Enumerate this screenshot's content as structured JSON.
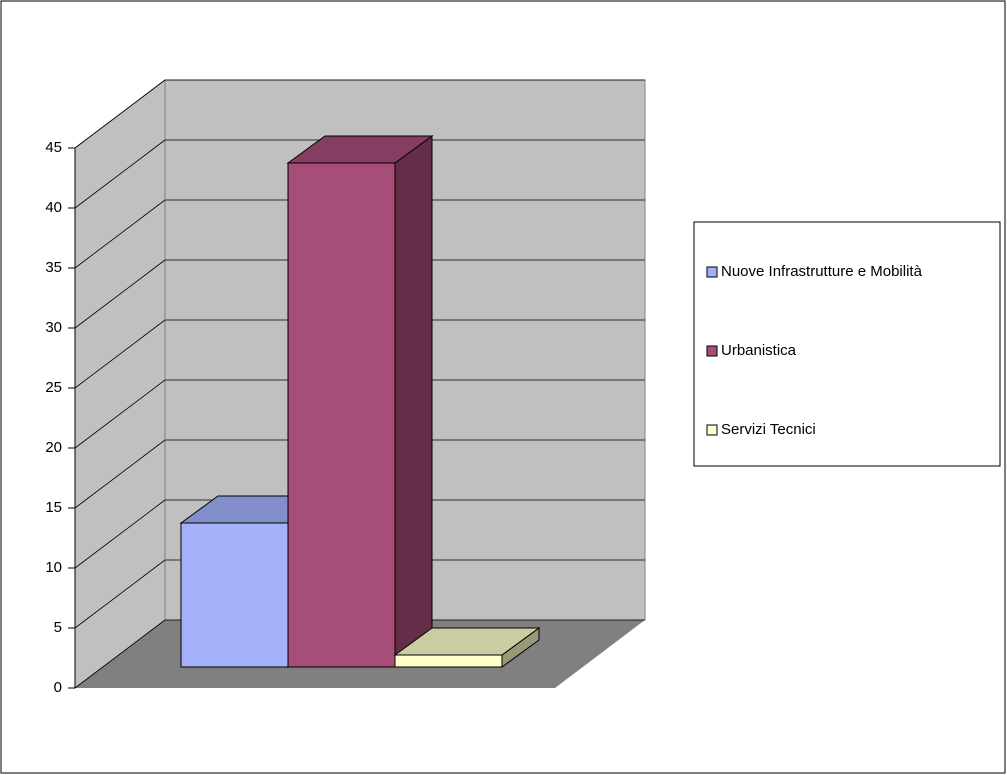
{
  "chart_data": {
    "type": "bar",
    "series": [
      {
        "name": "Nuove Infrastrutture e Mobilità",
        "color": "#a3b1fb",
        "values": [
          12
        ]
      },
      {
        "name": "Urbanistica",
        "color": "#a64d79",
        "values": [
          42
        ]
      },
      {
        "name": "Servizi Tecnici",
        "color": "#ffffcc",
        "values": [
          1
        ]
      }
    ],
    "ylim": [
      0,
      45
    ],
    "yticks": [
      0,
      5,
      10,
      15,
      20,
      25,
      30,
      35,
      40,
      45
    ],
    "grid": true,
    "legend": "right"
  }
}
